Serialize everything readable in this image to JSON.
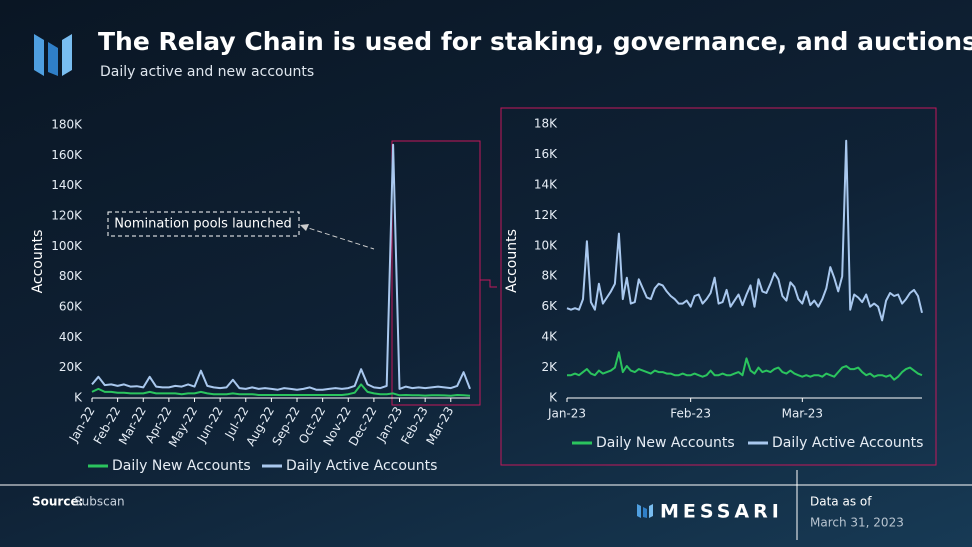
{
  "header": {
    "title": "The Relay Chain is used for staking, governance, and auctions",
    "subtitle": "Daily active and new accounts"
  },
  "footer": {
    "source_label": "Source:",
    "source": "Subscan",
    "brand": "MESSARI",
    "date_label": "Data as of",
    "date": "March 31, 2023"
  },
  "chart_data": [
    {
      "type": "line",
      "ylabel": "Accounts",
      "categories": [
        "Jan-22",
        null,
        null,
        null,
        "Feb-22",
        null,
        null,
        null,
        "Mar-22",
        null,
        null,
        null,
        "Apr-22",
        null,
        null,
        null,
        "May-22",
        null,
        null,
        null,
        "Jun-22",
        null,
        null,
        null,
        "Jul-22",
        null,
        null,
        null,
        "Aug-22",
        null,
        null,
        null,
        "Sep-22",
        null,
        null,
        null,
        "Oct-22",
        null,
        null,
        null,
        "Nov-22",
        null,
        null,
        null,
        "Dec-22",
        null,
        null,
        null,
        "Jan-23",
        null,
        null,
        null,
        "Feb-23",
        null,
        null,
        null,
        "Mar-23",
        null,
        null,
        null
      ],
      "series": [
        {
          "name": "Daily New Accounts",
          "color": "#2bc45e",
          "values": [
            4000,
            6000,
            4000,
            4000,
            3500,
            3500,
            3000,
            3000,
            3000,
            4000,
            3000,
            3000,
            3000,
            3000,
            2500,
            3000,
            3000,
            4000,
            3000,
            2500,
            2500,
            2500,
            3000,
            2500,
            2500,
            2500,
            2000,
            2000,
            2000,
            2000,
            2000,
            2000,
            2000,
            2000,
            2000,
            2000,
            2000,
            2000,
            2000,
            2000,
            2500,
            3500,
            9000,
            4000,
            3000,
            2500,
            2500,
            3000,
            1800,
            2000,
            1800,
            1800,
            1600,
            1800,
            1800,
            1700,
            1500,
            2000,
            1800,
            1500
          ]
        },
        {
          "name": "Daily Active Accounts",
          "color": "#a9c8ee",
          "values": [
            9000,
            14000,
            8500,
            9000,
            8000,
            9000,
            7500,
            7800,
            7000,
            14000,
            7500,
            7000,
            7000,
            8000,
            7500,
            9000,
            7500,
            18000,
            8000,
            7000,
            6500,
            7000,
            12000,
            6500,
            6000,
            7000,
            6000,
            6500,
            6000,
            5500,
            6500,
            6000,
            5500,
            6000,
            7000,
            5500,
            5500,
            6000,
            6500,
            6000,
            6500,
            8000,
            19000,
            9000,
            7000,
            6500,
            8000,
            167000,
            6000,
            7500,
            6500,
            7000,
            6500,
            7000,
            7500,
            7000,
            6500,
            8000,
            17000,
            6000
          ]
        }
      ],
      "ylim": [
        0,
        180000
      ],
      "yticks": [
        {
          "value": 0,
          "label": "K"
        },
        {
          "value": 20000,
          "label": "20K"
        },
        {
          "value": 40000,
          "label": "40K"
        },
        {
          "value": 60000,
          "label": "60K"
        },
        {
          "value": 80000,
          "label": "80K"
        },
        {
          "value": 100000,
          "label": "100K"
        },
        {
          "value": 120000,
          "label": "120K"
        },
        {
          "value": 140000,
          "label": "140K"
        },
        {
          "value": 160000,
          "label": "160K"
        },
        {
          "value": 180000,
          "label": "180K"
        }
      ],
      "annotations": [
        {
          "text": "Nomination pools launched"
        }
      ]
    },
    {
      "type": "line",
      "ylabel": "Accounts",
      "categories": [
        "Jan-23",
        null,
        null,
        null,
        null,
        null,
        null,
        null,
        null,
        null,
        null,
        null,
        null,
        null,
        null,
        null,
        null,
        null,
        null,
        null,
        null,
        null,
        null,
        null,
        null,
        null,
        null,
        null,
        null,
        null,
        null,
        "Feb-23",
        null,
        null,
        null,
        null,
        null,
        null,
        null,
        null,
        null,
        null,
        null,
        null,
        null,
        null,
        null,
        null,
        null,
        null,
        null,
        null,
        null,
        null,
        null,
        null,
        null,
        null,
        null,
        "Mar-23",
        null,
        null,
        null,
        null,
        null,
        null,
        null,
        null,
        null,
        null,
        null,
        null,
        null,
        null,
        null,
        null,
        null,
        null,
        null,
        null,
        null,
        null,
        null,
        null,
        null,
        null,
        null,
        null,
        null,
        null
      ],
      "series": [
        {
          "name": "Daily New Accounts",
          "color": "#2bc45e",
          "values": [
            1500,
            1500,
            1600,
            1500,
            1700,
            1900,
            1600,
            1500,
            1800,
            1600,
            1700,
            1800,
            2000,
            3000,
            1700,
            2100,
            1800,
            1700,
            1900,
            1800,
            1700,
            1600,
            1800,
            1700,
            1700,
            1600,
            1600,
            1500,
            1500,
            1600,
            1500,
            1500,
            1600,
            1500,
            1400,
            1500,
            1800,
            1500,
            1500,
            1600,
            1500,
            1500,
            1600,
            1700,
            1500,
            2600,
            1800,
            1600,
            2000,
            1700,
            1800,
            1700,
            1900,
            2000,
            1700,
            1600,
            1800,
            1600,
            1500,
            1400,
            1500,
            1400,
            1500,
            1500,
            1400,
            1600,
            1500,
            1400,
            1700,
            2000,
            2100,
            1900,
            1900,
            2000,
            1700,
            1500,
            1600,
            1400,
            1500,
            1500,
            1400,
            1500,
            1200,
            1400,
            1700,
            1900,
            2000,
            1800,
            1600,
            1500
          ]
        },
        {
          "name": "Daily Active Accounts",
          "color": "#a9c8ee",
          "values": [
            5900,
            5800,
            5900,
            5800,
            6500,
            10300,
            6300,
            5800,
            7500,
            6200,
            6600,
            7000,
            7500,
            10800,
            6500,
            7900,
            6200,
            6300,
            7800,
            7200,
            6600,
            6500,
            7200,
            7500,
            7400,
            7000,
            6700,
            6500,
            6200,
            6200,
            6400,
            6000,
            6700,
            6800,
            6200,
            6500,
            6900,
            7900,
            6200,
            6300,
            7100,
            6000,
            6400,
            6800,
            6100,
            6800,
            7400,
            6000,
            7800,
            7000,
            6900,
            7500,
            8200,
            7800,
            6700,
            6400,
            7600,
            7300,
            6500,
            6200,
            7000,
            6100,
            6400,
            6000,
            6500,
            7200,
            8600,
            7900,
            7000,
            8000,
            16900,
            5800,
            6800,
            6600,
            6300,
            6800,
            6000,
            6200,
            6000,
            5100,
            6400,
            6900,
            6700,
            6800,
            6200,
            6500,
            6900,
            7100,
            6700,
            5600
          ]
        }
      ],
      "ylim": [
        0,
        18000
      ],
      "yticks": [
        {
          "value": 0,
          "label": "K"
        },
        {
          "value": 2000,
          "label": "2K"
        },
        {
          "value": 4000,
          "label": "4K"
        },
        {
          "value": 6000,
          "label": "6K"
        },
        {
          "value": 8000,
          "label": "8K"
        },
        {
          "value": 10000,
          "label": "10K"
        },
        {
          "value": 12000,
          "label": "12K"
        },
        {
          "value": 14000,
          "label": "14K"
        },
        {
          "value": 16000,
          "label": "16K"
        },
        {
          "value": 18000,
          "label": "18K"
        }
      ]
    }
  ]
}
